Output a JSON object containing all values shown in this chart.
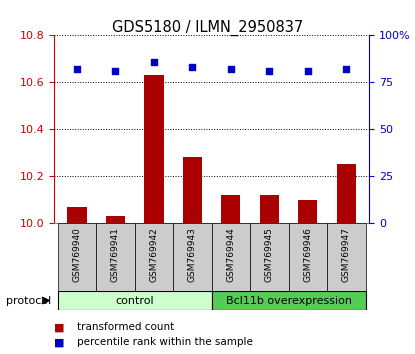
{
  "title": "GDS5180 / ILMN_2950837",
  "samples": [
    "GSM769940",
    "GSM769941",
    "GSM769942",
    "GSM769943",
    "GSM769944",
    "GSM769945",
    "GSM769946",
    "GSM769947"
  ],
  "transformed_counts": [
    10.07,
    10.03,
    10.63,
    10.28,
    10.12,
    10.12,
    10.1,
    10.25
  ],
  "percentile_ranks": [
    82,
    81,
    86,
    83,
    82,
    81,
    81,
    82
  ],
  "ylim_left": [
    10.0,
    10.8
  ],
  "ylim_right": [
    0,
    100
  ],
  "yticks_left": [
    10.0,
    10.2,
    10.4,
    10.6,
    10.8
  ],
  "yticks_right": [
    0,
    25,
    50,
    75,
    100
  ],
  "yticklabels_right": [
    "0",
    "25",
    "50",
    "75",
    "100%"
  ],
  "protocol_label": "protocol",
  "bar_color": "#aa0000",
  "dot_color": "#0000cc",
  "legend_bar_label": "transformed count",
  "legend_dot_label": "percentile rank within the sample",
  "bar_width": 0.5,
  "tick_label_color_left": "#cc0000",
  "tick_label_color_right": "#0000cc",
  "xticklabel_bg": "#cccccc",
  "group_control_label": "control",
  "group_overexp_label": "Bcl11b overexpression",
  "group_control_color": "#ccffcc",
  "group_overexp_color": "#55cc55",
  "grid_yticks": [
    10.2,
    10.4,
    10.6,
    10.8
  ]
}
